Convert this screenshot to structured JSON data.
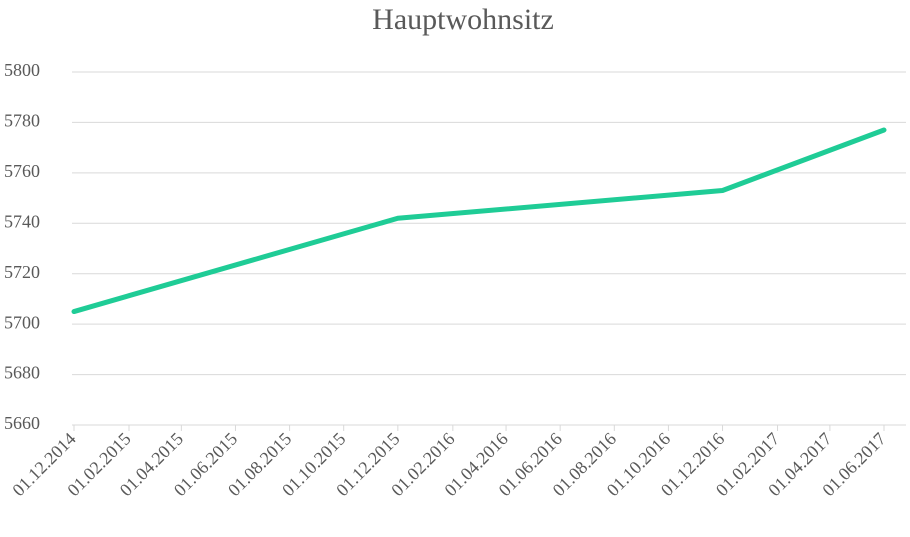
{
  "chart_data": {
    "type": "line",
    "title": "Hauptwohnsitz",
    "x": [
      "01.12.2014",
      "01.12.2015",
      "01.12.2016",
      "01.06.2017"
    ],
    "series": [
      {
        "name": "Hauptwohnsitz",
        "color": "#1fcc96",
        "values": [
          5705,
          5742,
          5753,
          5777
        ]
      }
    ],
    "xlim": [
      "01.12.2014",
      "01.06.2017"
    ],
    "xticks": [
      "01.12.2014",
      "01.02.2015",
      "01.04.2015",
      "01.06.2015",
      "01.08.2015",
      "01.10.2015",
      "01.12.2015",
      "01.02.2016",
      "01.04.2016",
      "01.06.2016",
      "01.08.2016",
      "01.10.2016",
      "01.12.2016",
      "01.02.2017",
      "01.04.2017",
      "01.06.2017"
    ],
    "ylim": [
      5660,
      5800
    ],
    "yticks": [
      5660,
      5680,
      5700,
      5720,
      5740,
      5760,
      5780,
      5800
    ],
    "grid": true
  }
}
